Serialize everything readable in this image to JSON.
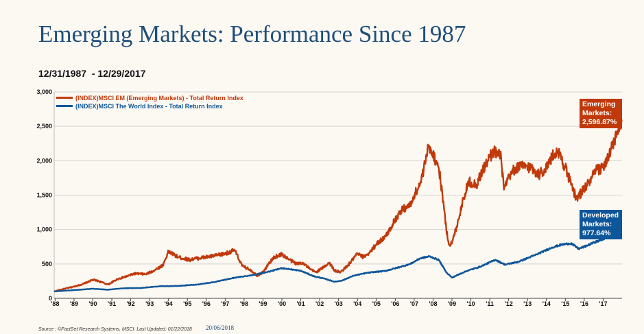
{
  "header": {
    "title": "Emerging Markets: Performance Since 1987",
    "date_range": "12/31/1987  - 12/29/2017"
  },
  "footer": {
    "source": "Source : ©FactSet Research Systems, MSCI. Last Updated: 01/22/2018",
    "date": "20/06/2018"
  },
  "colors": {
    "em": "#c0390b",
    "world": "#0d5699",
    "grid": "#d3d3d3"
  },
  "chart_data": {
    "type": "line",
    "title": "Emerging Markets: Performance Since 1987",
    "xlabel": "",
    "ylabel": "",
    "xlim": [
      1987.95,
      2018.0
    ],
    "ylim": [
      0,
      3000
    ],
    "y_ticks": [
      0,
      500,
      1000,
      1500,
      2000,
      2500,
      3000
    ],
    "y_tick_labels": [
      "0",
      "500",
      "1,000",
      "1,500",
      "2,000",
      "2,500",
      "3,000"
    ],
    "x_ticks": [
      1988,
      1989,
      1990,
      1991,
      1992,
      1993,
      1994,
      1995,
      1996,
      1997,
      1998,
      1999,
      2000,
      2001,
      2002,
      2003,
      2004,
      2005,
      2006,
      2007,
      2008,
      2009,
      2010,
      2011,
      2012,
      2013,
      2014,
      2015,
      2016,
      2017
    ],
    "x_tick_labels": [
      "'88",
      "'89",
      "'90",
      "'91",
      "'92",
      "'93",
      "'94",
      "'95",
      "'96",
      "'97",
      "'98",
      "'99",
      "'00",
      "'01",
      "'02",
      "'03",
      "'04",
      "'05",
      "'06",
      "'07",
      "'08",
      "'09",
      "'10",
      "'11",
      "'12",
      "'13",
      "'14",
      "'15",
      "'16",
      "'17"
    ],
    "grid": true,
    "legend_position": "top-left",
    "series": [
      {
        "name": "(INDEX)MSCI EM (Emerging Markets) - Total Return Index",
        "color": "#c0390b",
        "x": [
          1987.95,
          1988.5,
          1989.0,
          1989.5,
          1990.0,
          1990.3,
          1990.8,
          1991.3,
          1991.8,
          1992.2,
          1992.8,
          1993.2,
          1993.7,
          1994.0,
          1994.5,
          1995.1,
          1995.5,
          1996.0,
          1996.5,
          1997.0,
          1997.5,
          1997.9,
          1998.3,
          1998.7,
          1999.0,
          1999.3,
          1999.6,
          2000.0,
          2000.4,
          2000.8,
          2001.1,
          2001.5,
          2001.8,
          2002.2,
          2002.5,
          2002.8,
          2003.1,
          2003.5,
          2004.0,
          2004.3,
          2004.7,
          2005.0,
          2005.5,
          2006.0,
          2006.4,
          2006.8,
          2007.0,
          2007.3,
          2007.5,
          2007.7,
          2007.85,
          2008.0,
          2008.3,
          2008.5,
          2008.7,
          2008.85,
          2009.0,
          2009.3,
          2009.6,
          2009.9,
          2010.3,
          2010.6,
          2010.9,
          2011.2,
          2011.6,
          2011.75,
          2012.1,
          2012.4,
          2012.8,
          2013.2,
          2013.6,
          2014.0,
          2014.3,
          2014.6,
          2015.0,
          2015.3,
          2015.6,
          2015.95,
          2016.3,
          2016.6,
          2016.95,
          2017.3,
          2017.6,
          2017.98
        ],
        "values": [
          100,
          140,
          170,
          210,
          270,
          250,
          200,
          280,
          320,
          360,
          350,
          400,
          480,
          680,
          600,
          560,
          580,
          600,
          620,
          650,
          700,
          470,
          420,
          330,
          380,
          500,
          600,
          640,
          560,
          500,
          520,
          420,
          380,
          450,
          520,
          400,
          380,
          480,
          650,
          600,
          680,
          790,
          900,
          1150,
          1300,
          1350,
          1500,
          1650,
          1850,
          2150,
          2200,
          2100,
          1900,
          1500,
          1000,
          780,
          800,
          1100,
          1450,
          1700,
          1650,
          1850,
          2000,
          2150,
          2050,
          1580,
          1800,
          1900,
          1920,
          1900,
          1800,
          1900,
          2050,
          2150,
          1900,
          1650,
          1450,
          1580,
          1700,
          1850,
          1900,
          2050,
          2300,
          2597
        ]
      },
      {
        "name": "(INDEX)MSCI The World Index - Total Return Index",
        "color": "#0d5699",
        "x": [
          1987.95,
          1989.0,
          1990.0,
          1990.8,
          1991.5,
          1992.5,
          1993.5,
          1994.5,
          1995.5,
          1996.5,
          1997.5,
          1998.5,
          1999.0,
          1999.5,
          2000.0,
          2000.5,
          2001.0,
          2001.7,
          2002.2,
          2002.8,
          2003.2,
          2003.8,
          2004.5,
          2005.5,
          2006.3,
          2006.8,
          2007.3,
          2007.8,
          2008.3,
          2008.7,
          2009.0,
          2009.3,
          2009.8,
          2010.5,
          2011.3,
          2011.8,
          2012.5,
          2013.5,
          2014.3,
          2014.8,
          2015.3,
          2015.7,
          2016.1,
          2016.5,
          2017.0,
          2017.5,
          2017.98
        ],
        "values": [
          100,
          120,
          140,
          125,
          145,
          150,
          175,
          180,
          200,
          240,
          300,
          340,
          370,
          400,
          440,
          420,
          400,
          320,
          290,
          240,
          260,
          330,
          370,
          400,
          460,
          500,
          580,
          610,
          560,
          380,
          300,
          340,
          400,
          460,
          560,
          490,
          530,
          640,
          740,
          780,
          800,
          720,
          760,
          810,
          860,
          920,
          978
        ]
      }
    ],
    "annotations": [
      {
        "label": "Emerging Markets: 2,596.87%",
        "lines": [
          "Emerging",
          "Markets:",
          "2,596.87%"
        ],
        "x": 2017.98,
        "y": 2597
      },
      {
        "label": "Developed Markets: 977.64%",
        "lines": [
          "Developed",
          "Markets:",
          "977.64%"
        ],
        "x": 2017.98,
        "y": 978
      }
    ]
  }
}
